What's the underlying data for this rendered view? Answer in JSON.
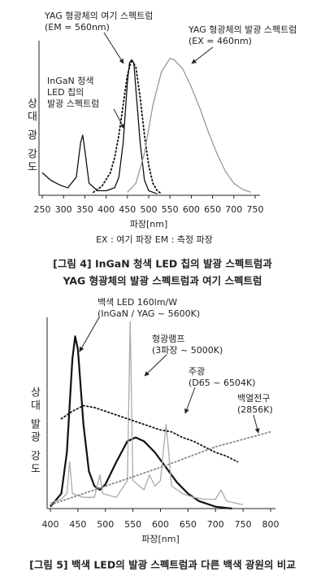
{
  "chart_data": [
    {
      "type": "line",
      "ylabel": "상대 광 강도",
      "xlabel": "파장[nm]",
      "note": "EX : 여기 파장  EM : 측정 파장",
      "caption": [
        "[그림 4] InGaN 청색 LED 칩의 발광 스펙트럼과",
        "YAG 형광체의 발광 스펙트럼과 여기 스펙트럼"
      ],
      "annotations": [
        [
          "YAG 형광체의 여기 스펙트럼",
          "(EM = 560nm)"
        ],
        [
          "YAG 형광체의 발광 스펙트럼",
          "(EX = 460nm)"
        ],
        [
          "InGaN 청색",
          "LED 칩의",
          "발광 스펙트럼"
        ]
      ],
      "xlim": [
        250,
        750
      ],
      "xticks": [
        250,
        300,
        350,
        400,
        450,
        500,
        550,
        600,
        650,
        700,
        750
      ],
      "ylim": [
        0,
        100
      ],
      "series": [
        {
          "color": "#111111",
          "style": "solid",
          "x": [
            250,
            270,
            290,
            310,
            330,
            340,
            345,
            350,
            360,
            380,
            400,
            420,
            430,
            440,
            450,
            455,
            460,
            465,
            470,
            480,
            490,
            500,
            520
          ],
          "values": [
            15,
            10,
            7,
            5,
            12,
            35,
            40,
            30,
            8,
            3,
            3,
            5,
            12,
            35,
            75,
            88,
            90,
            88,
            70,
            35,
            10,
            3,
            1
          ]
        },
        {
          "color": "#111111",
          "style": "dotted",
          "x": [
            370,
            390,
            410,
            420,
            430,
            440,
            450,
            460,
            470,
            480,
            490,
            500,
            510,
            520,
            530
          ],
          "values": [
            2,
            6,
            15,
            25,
            40,
            60,
            80,
            90,
            85,
            65,
            40,
            20,
            8,
            3,
            1
          ]
        },
        {
          "color": "#999999",
          "style": "solid",
          "x": [
            450,
            470,
            490,
            510,
            530,
            550,
            560,
            580,
            600,
            620,
            640,
            660,
            680,
            700,
            720,
            740
          ],
          "values": [
            2,
            8,
            28,
            60,
            82,
            91,
            90,
            84,
            72,
            58,
            42,
            28,
            16,
            8,
            4,
            2
          ]
        }
      ]
    },
    {
      "type": "line",
      "ylabel": "상대 발광 강도",
      "xlabel": "파장[nm]",
      "caption": [
        "[그림 5] 백색 LED의 발광 스펙트럼과 다른 백색 광원의 비교"
      ],
      "annotations": [
        [
          "백색 LED 160lm/W",
          "(InGaN / YAG ~ 5600K)"
        ],
        [
          "형광램프",
          "(3파장 ~ 5000K)"
        ],
        [
          "주광",
          "(D65 ~ 6504K)"
        ],
        [
          "백열전구",
          "(2856K)"
        ]
      ],
      "xlim": [
        400,
        800
      ],
      "xticks": [
        400,
        450,
        500,
        550,
        600,
        650,
        700,
        750,
        800
      ],
      "ylim": [
        0,
        100
      ],
      "series": [
        {
          "color": "#111111",
          "style": "bold",
          "x": [
            400,
            420,
            430,
            440,
            445,
            450,
            460,
            470,
            480,
            490,
            500,
            520,
            540,
            555,
            570,
            590,
            610,
            630,
            650,
            670,
            700,
            730
          ],
          "values": [
            1,
            8,
            30,
            80,
            92,
            85,
            45,
            20,
            12,
            10,
            13,
            25,
            36,
            38,
            36,
            30,
            22,
            14,
            8,
            4,
            1,
            0
          ]
        },
        {
          "color": "#aaaaaa",
          "style": "solid",
          "x": [
            400,
            420,
            430,
            435,
            440,
            460,
            480,
            490,
            495,
            520,
            540,
            545,
            550,
            570,
            580,
            590,
            600,
            610,
            615,
            620,
            640,
            660,
            680,
            700,
            710,
            720,
            750
          ],
          "values": [
            3,
            5,
            8,
            25,
            8,
            6,
            6,
            18,
            8,
            6,
            15,
            100,
            15,
            10,
            18,
            12,
            15,
            45,
            30,
            12,
            8,
            6,
            5,
            5,
            10,
            4,
            2
          ]
        },
        {
          "color": "#111111",
          "style": "dotted",
          "x": [
            420,
            440,
            460,
            480,
            500,
            520,
            540,
            560,
            580,
            600,
            620,
            640,
            660,
            680,
            700,
            720,
            740
          ],
          "values": [
            48,
            52,
            55,
            54,
            52,
            50,
            48,
            46,
            44,
            42,
            41,
            38,
            36,
            33,
            30,
            28,
            25
          ]
        },
        {
          "color": "#888888",
          "style": "dotted",
          "x": [
            400,
            500,
            600,
            700,
            800
          ],
          "values": [
            2,
            12,
            22,
            33,
            41
          ]
        }
      ]
    }
  ]
}
